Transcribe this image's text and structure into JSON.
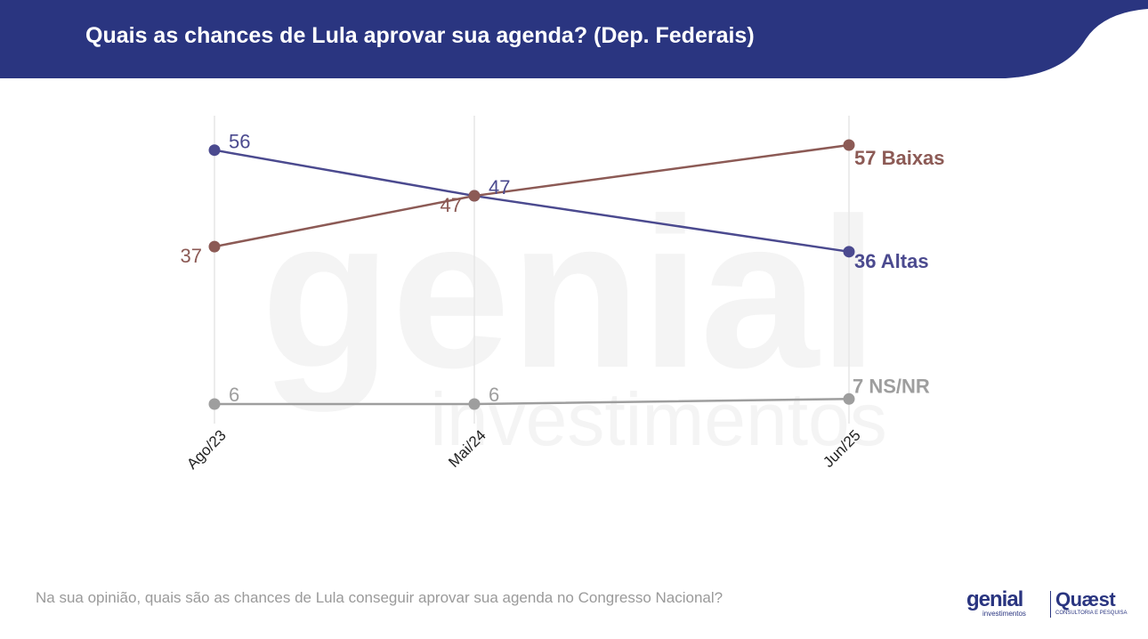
{
  "header": {
    "title": "Quais as chances de Lula aprovar sua agenda? (Dep. Federais)"
  },
  "chart_data": {
    "type": "line",
    "categories": [
      "Ago/23",
      "Mai/24",
      "Jun/25"
    ],
    "series": [
      {
        "name": "Altas",
        "values": [
          56,
          47,
          36
        ],
        "color": "#4b4a8f",
        "end_label": "36 Altas"
      },
      {
        "name": "Baixas",
        "values": [
          37,
          47,
          57
        ],
        "color": "#8c5a55",
        "end_label": "57 Baixas"
      },
      {
        "name": "NS/NR",
        "values": [
          6,
          6,
          7
        ],
        "color": "#9e9e9e",
        "end_label": "7 NS/NR"
      }
    ],
    "data_labels": {
      "Altas": [
        "56",
        "47"
      ],
      "Baixas": [
        "37",
        "47"
      ],
      "NS/NR": [
        "6",
        "6"
      ]
    },
    "grid": "vertical",
    "legend": "end-of-line labels"
  },
  "watermark": {
    "brand": "genial",
    "sub": "investimentos"
  },
  "footer": {
    "question": "Na sua opinião, quais são as chances de Lula conseguir aprovar sua agenda no Congresso Nacional?",
    "logo_genial": "genial",
    "logo_genial_sub": "investimentos",
    "logo_quaest": "Quæst",
    "logo_quaest_sub": "CONSULTORIA E PESQUISA"
  },
  "colors": {
    "header_bg": "#2a3580",
    "altas": "#4b4a8f",
    "baixas": "#8c5a55",
    "nsnr": "#9e9e9e"
  }
}
